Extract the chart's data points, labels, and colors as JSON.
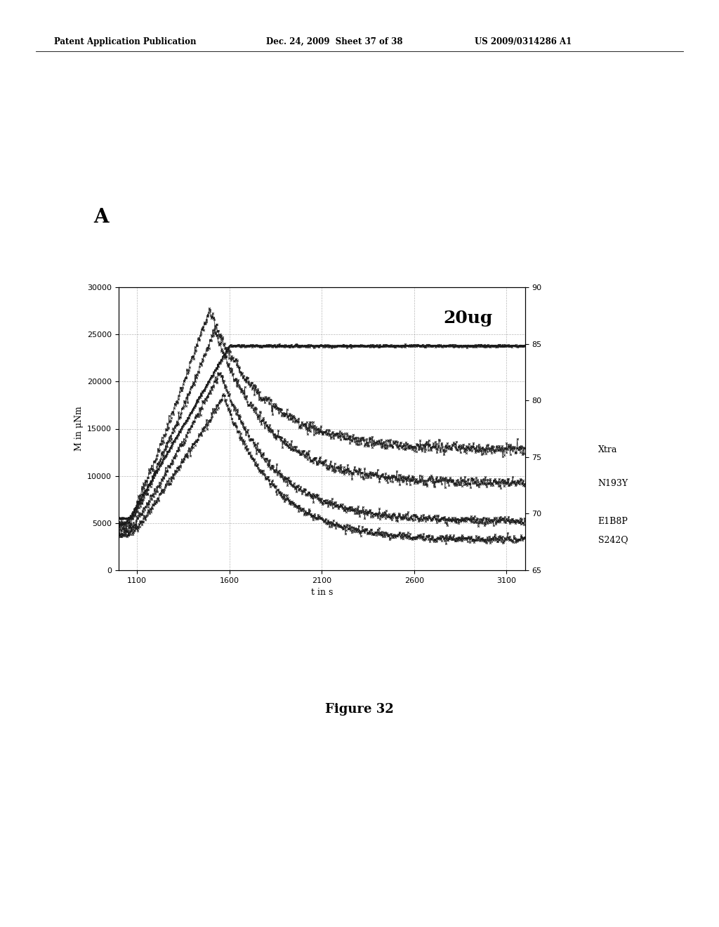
{
  "page_header_left": "Patent Application Publication",
  "page_header_mid": "Dec. 24, 2009  Sheet 37 of 38",
  "page_header_right": "US 2009/0314286 A1",
  "panel_label": "A",
  "annotation": "20ug",
  "xlabel": "t in s",
  "ylabel": "M in μNm",
  "figure_label": "Figure 32",
  "xlim": [
    1000,
    3200
  ],
  "ylim_left": [
    0,
    30000
  ],
  "ylim_right": [
    65,
    90
  ],
  "xticks": [
    1100,
    1600,
    2100,
    2600,
    3100
  ],
  "yticks_left": [
    0,
    5000,
    10000,
    15000,
    20000,
    25000,
    30000
  ],
  "yticks_right": [
    65,
    70,
    75,
    80,
    85,
    90
  ],
  "series_labels": [
    "Xtra",
    "N193Y",
    "E1B8P",
    "S242Q"
  ],
  "bg_color": "#ffffff",
  "plot_bg_color": "#ffffff",
  "grid_color": "#999999",
  "line_color": "#1a1a1a",
  "flat_plateau": 23800,
  "xtra_plateau": 12800,
  "n193y_plateau": 9200,
  "e1b8p_plateau": 5200,
  "s242q_plateau": 3200,
  "peak_xtra": 27500,
  "peak_n193y": 25500,
  "peak_e1b8p": 21000,
  "peak_s242q": 18500,
  "peak_t": 1490
}
